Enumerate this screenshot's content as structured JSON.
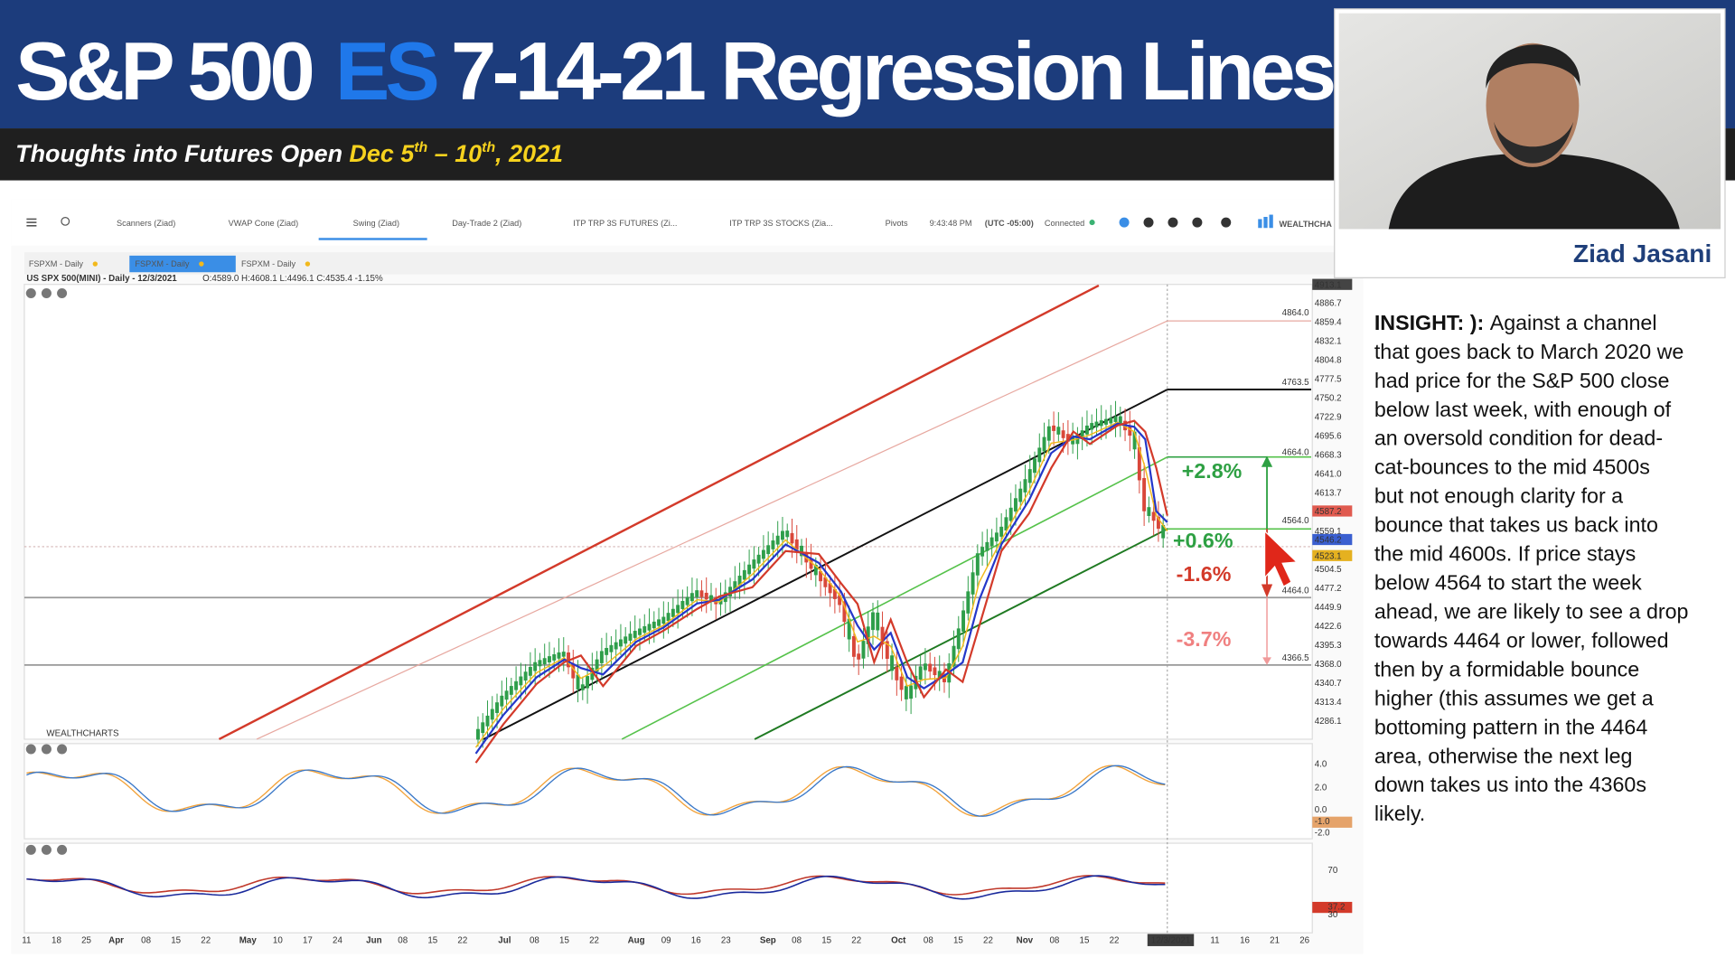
{
  "header": {
    "title_part1": "S&P 500",
    "title_part2": "ES",
    "title_part3": "7-14-21 Regression Lines",
    "subtitle": "Thoughts into Futures Open",
    "date_part1": "Dec 5",
    "sup1": "th",
    "date_part2": " – 10",
    "sup2": "th",
    "date_part3": ", 2021"
  },
  "toolbar": {
    "tabs": [
      "Scanners (Ziad)",
      "VWAP Cone (Ziad)",
      "Swing (Ziad)",
      "Day-Trade 2 (Ziad)",
      "ITP TRP 3S FUTURES (Zi...",
      "ITP TRP 3S STOCKS (Zia..."
    ],
    "pivots": "Pivots",
    "time": "9:43:48 PM",
    "tz": "(UTC -05:00)",
    "status": "Connected",
    "brand": "WEALTHCHA"
  },
  "subtabs": [
    "FSPXM - Daily",
    "FSPXM - Daily",
    "FSPXM - Daily"
  ],
  "chart": {
    "symbol": "US SPX 500(MINI) - Daily - 12/3/2021",
    "ohlc": "O:4589.0 H:4608.1 L:4496.1 C:4535.4 -1.15%",
    "watermark": "WEALTHCHARTS",
    "price_labels": [
      "4913.1",
      "4886.7",
      "4859.4",
      "4832.1",
      "4804.8",
      "4777.5",
      "4750.2",
      "4722.9",
      "4695.6",
      "4668.3",
      "4641.0",
      "4613.7",
      "4587.2",
      "4559.1",
      "4546.2",
      "4523.1",
      "4504.5",
      "4477.2",
      "4449.9",
      "4422.6",
      "4395.3",
      "4368.0",
      "4340.7",
      "4313.4",
      "4286.1"
    ],
    "level_labels": [
      "4864.0",
      "4763.5",
      "4664.0",
      "4564.0",
      "4464.0",
      "4366.5"
    ],
    "annotations": [
      "+2.8%",
      "+0.6%",
      "-1.6%",
      "-3.7%"
    ],
    "osc_labels": [
      "4.0",
      "2.0",
      "0.0",
      "-1.0",
      "-2.0"
    ],
    "rsi_labels": [
      "70",
      "37.2",
      "30"
    ],
    "dates": [
      "11",
      "18",
      "25",
      "Apr",
      "08",
      "15",
      "22",
      "May",
      "10",
      "17",
      "24",
      "Jun",
      "08",
      "15",
      "22",
      "Jul",
      "08",
      "15",
      "22",
      "Aug",
      "09",
      "16",
      "23",
      "Sep",
      "08",
      "15",
      "22",
      "Oct",
      "08",
      "15",
      "22",
      "Nov",
      "08",
      "15",
      "22",
      "12/3/2021",
      "11",
      "16",
      "21",
      "26"
    ]
  },
  "presenter": "Ziad Jasani",
  "insight_label": "INSIGHT: ):",
  "insight": [
    "Against a channel",
    "that goes back to March 2020 we",
    "had price for the S&P 500 close",
    "below last week, with enough of",
    "an oversold condition for dead-",
    "cat-bounces to the mid 4500s",
    "but not enough clarity for a",
    "bounce that takes us back into",
    "the mid 4600s. If price stays",
    "below 4564 to start the week",
    "ahead, we are likely to see a drop",
    "towards 4464 or lower, followed",
    "then by a formidable bounce",
    "higher (this assumes we get a",
    "bottoming pattern in the 4464",
    "area, otherwise the next leg",
    "down takes us into the 4360s",
    "likely."
  ]
}
